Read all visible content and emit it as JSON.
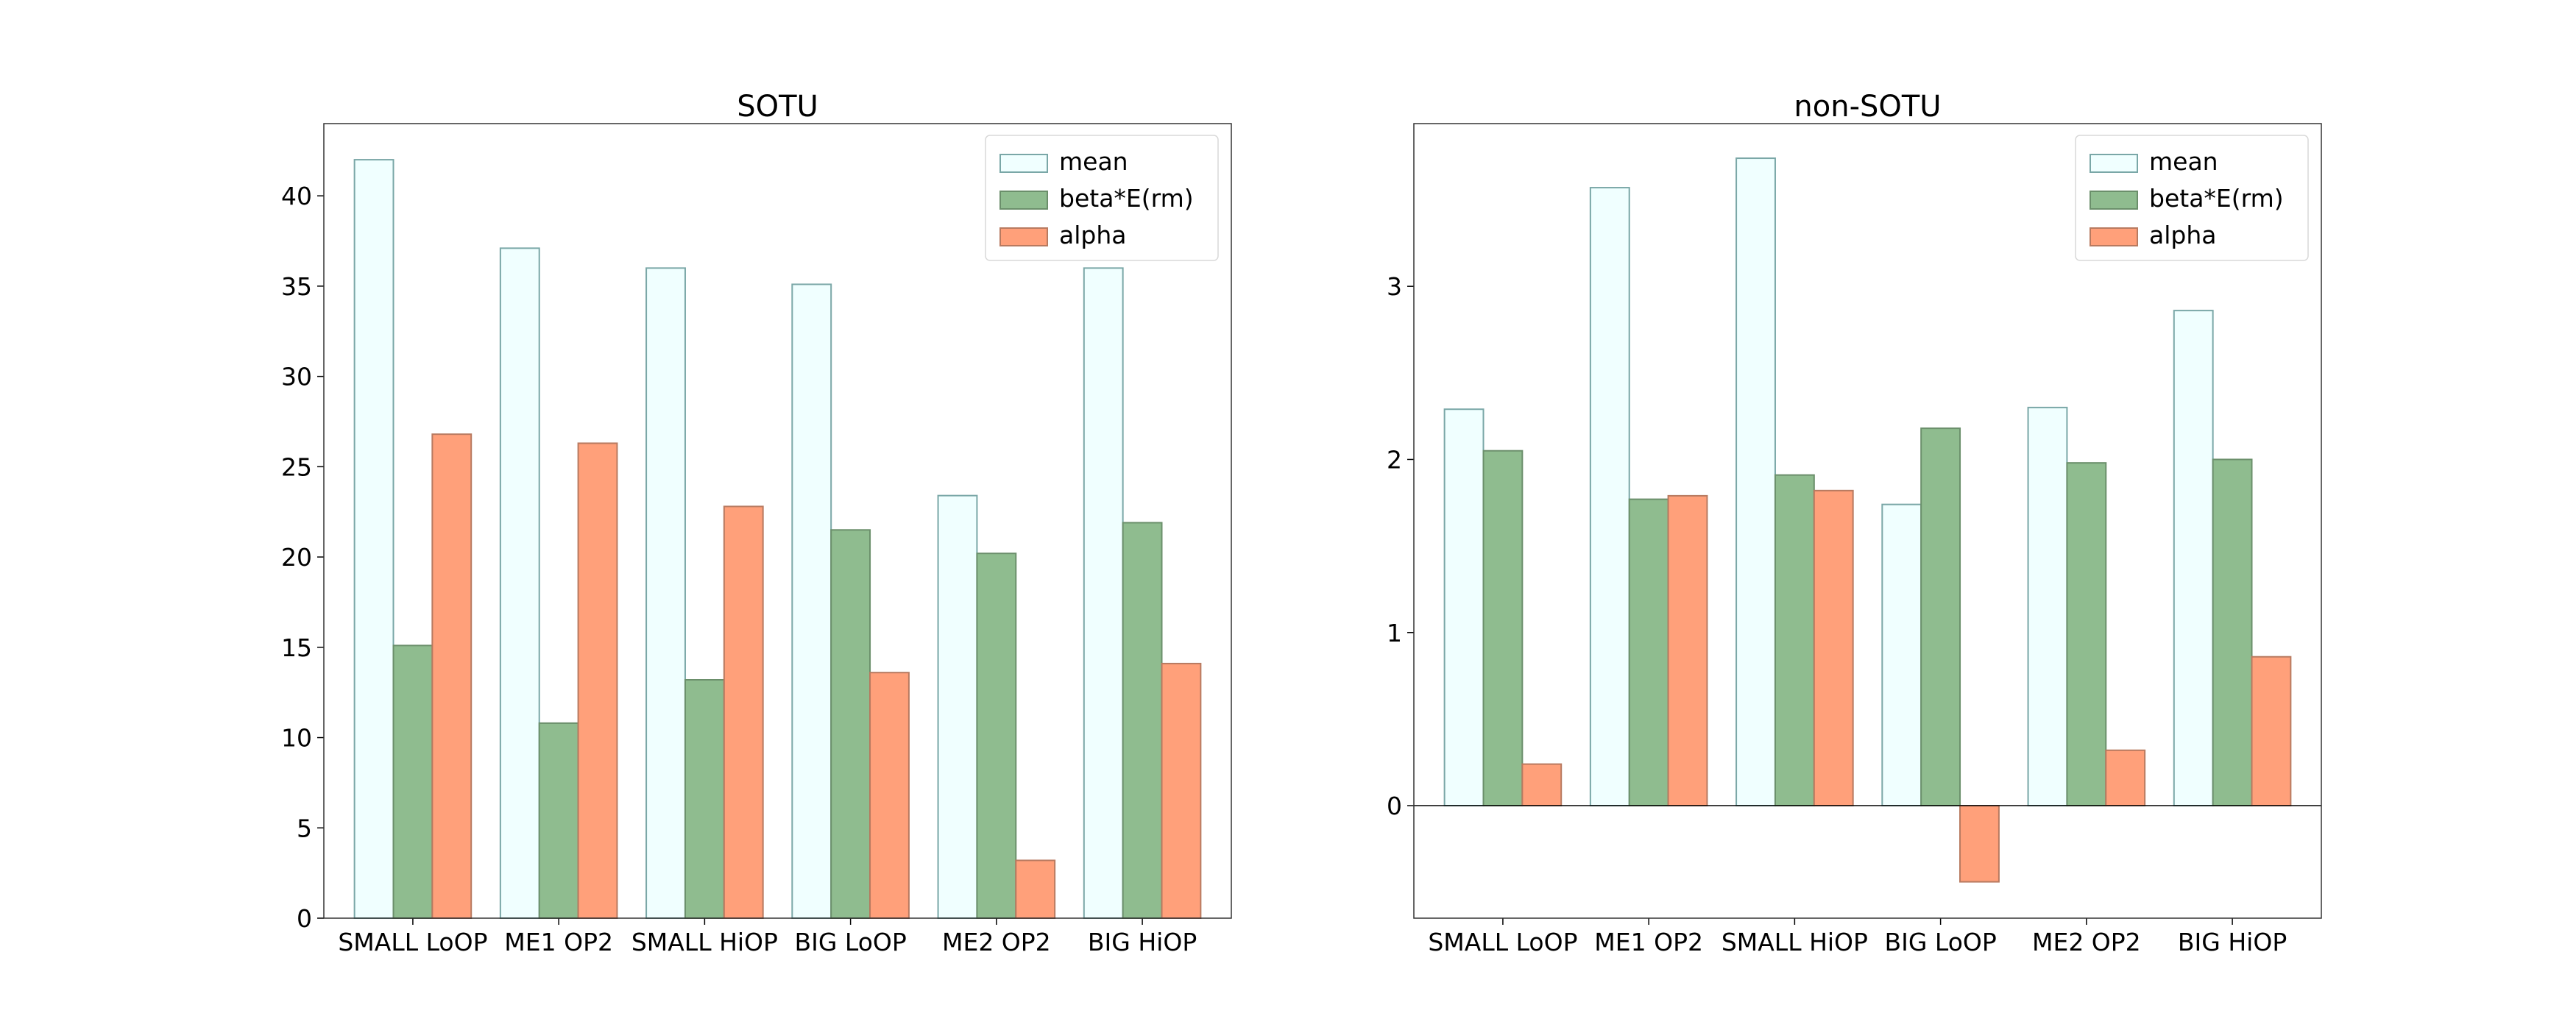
{
  "chart_data": [
    {
      "type": "bar",
      "title": "SOTU",
      "xlabel": "",
      "ylabel": "",
      "categories": [
        "SMALL LoOP",
        "ME1 OP2",
        "SMALL HiOP",
        "BIG LoOP",
        "ME2 OP2",
        "BIG HiOP"
      ],
      "series": [
        {
          "name": "mean",
          "values": [
            42.0,
            37.1,
            36.0,
            35.1,
            23.4,
            36.0
          ],
          "color": "#f0ffff",
          "edge": "#7aa7a7"
        },
        {
          "name": "beta*E(rm)",
          "values": [
            15.1,
            10.8,
            13.2,
            21.5,
            20.2,
            21.9
          ],
          "color": "#8fbc8f",
          "edge": "#6b8f6b"
        },
        {
          "name": "alpha",
          "values": [
            26.8,
            26.3,
            22.8,
            13.6,
            3.2,
            14.1
          ],
          "color": "#ffa07a",
          "edge": "#b87a60"
        }
      ],
      "ylim": [
        0,
        44
      ],
      "yticks": [
        0,
        5,
        10,
        15,
        20,
        25,
        30,
        35,
        40
      ],
      "ytick_labels": [
        "0",
        "5",
        "10",
        "15",
        "20",
        "25",
        "30",
        "35",
        "40"
      ],
      "legend": "top-right",
      "grid": false
    },
    {
      "type": "bar",
      "title": "non-SOTU",
      "xlabel": "",
      "ylabel": "",
      "categories": [
        "SMALL LoOP",
        "ME1 OP2",
        "SMALL HiOP",
        "BIG LoOP",
        "ME2 OP2",
        "BIG HiOP"
      ],
      "series": [
        {
          "name": "mean",
          "values": [
            2.29,
            3.57,
            3.74,
            1.74,
            2.3,
            2.86
          ],
          "color": "#f0ffff",
          "edge": "#7aa7a7"
        },
        {
          "name": "beta*E(rm)",
          "values": [
            2.05,
            1.77,
            1.91,
            2.18,
            1.98,
            2.0
          ],
          "color": "#8fbc8f",
          "edge": "#6b8f6b"
        },
        {
          "name": "alpha",
          "values": [
            0.24,
            1.79,
            1.82,
            -0.44,
            0.32,
            0.86
          ],
          "color": "#ffa07a",
          "edge": "#b87a60"
        }
      ],
      "ylim": [
        -0.65,
        3.94
      ],
      "yticks": [
        0,
        1,
        2,
        3
      ],
      "ytick_labels": [
        "0",
        "1",
        "2",
        "3"
      ],
      "zero_line": true,
      "legend": "top-right",
      "grid": false
    }
  ]
}
